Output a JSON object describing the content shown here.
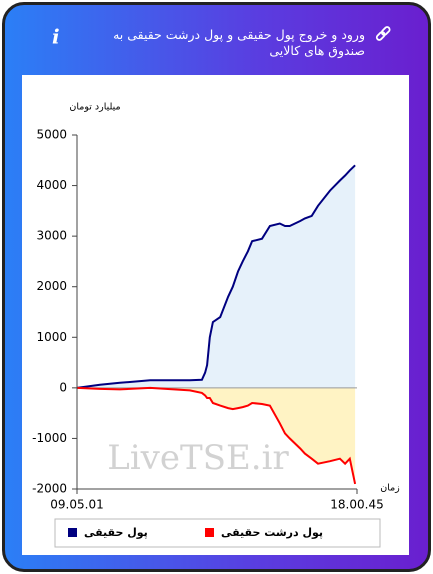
{
  "header": {
    "title": "ورود و خروج پول حقیقی و پول درشت حقیقی به صندوق های کالایی"
  },
  "chart_data": {
    "type": "area",
    "y_label": "میلیارد تومان",
    "x_label": "زمان",
    "watermark": "LiveTSE.ir",
    "x": [
      0,
      44,
      82,
      140,
      216,
      239,
      245,
      249,
      254,
      260,
      274,
      289,
      298,
      308,
      317,
      327,
      335,
      354,
      369,
      388,
      398,
      407,
      427,
      436,
      449,
      461,
      484,
      503,
      513,
      522,
      532
    ],
    "series": [
      {
        "name": "پول حقیقی",
        "color": "#000080",
        "fill": "#e6f1fa",
        "values": [
          0,
          60,
          100,
          150,
          150,
          160,
          300,
          450,
          1000,
          1300,
          1400,
          1800,
          2000,
          2300,
          2500,
          2700,
          2900,
          2950,
          3200,
          3250,
          3200,
          3200,
          3300,
          3350,
          3400,
          3600,
          3900,
          4100,
          4200,
          4300,
          4400
        ]
      },
      {
        "name": "پول درشت حقیقی",
        "color": "#ff0000",
        "fill": "#fff3c4",
        "values": [
          0,
          -20,
          -30,
          0,
          -50,
          -100,
          -150,
          -200,
          -200,
          -300,
          -350,
          -400,
          -420,
          -400,
          -380,
          -350,
          -300,
          -320,
          -350,
          -700,
          -900,
          -1000,
          -1200,
          -1300,
          -1400,
          -1500,
          -1450,
          -1400,
          -1500,
          -1400,
          -1900
        ]
      }
    ],
    "xlim": [
      0,
      535.7
    ],
    "xticks": [
      {
        "value": 0,
        "label": "09.05.01"
      },
      {
        "value": 535.7,
        "label": "18.00.45"
      }
    ],
    "ylim": [
      -2000,
      5000
    ],
    "yticks": [
      -2000,
      -1000,
      0,
      1000,
      2000,
      3000,
      4000,
      5000
    ]
  }
}
